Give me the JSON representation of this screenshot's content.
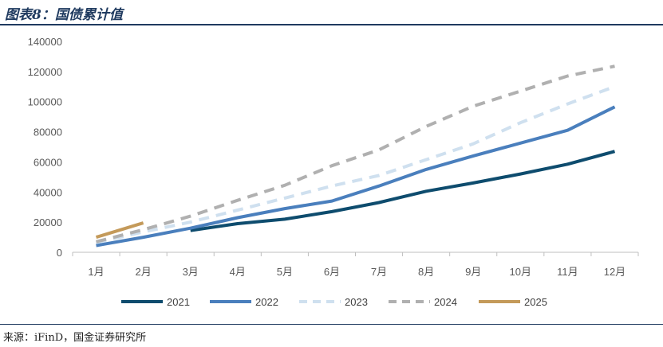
{
  "header": {
    "title": "图表8：国债累计值"
  },
  "footer": {
    "source": "来源：iFinD，国金证券研究所"
  },
  "colors": {
    "2021": "#0e4c6e",
    "2022": "#4a7fbd",
    "2023": "#cfe0ef",
    "2024": "#b0b0b0",
    "2025": "#c49a5a"
  },
  "chart_data": {
    "type": "line",
    "title": "图表8：国债累计值",
    "xlabel": "",
    "ylabel": "",
    "categories": [
      "1月",
      "2月",
      "3月",
      "4月",
      "5月",
      "6月",
      "7月",
      "8月",
      "9月",
      "10月",
      "11月",
      "12月"
    ],
    "y_ticks": [
      "0",
      "20000",
      "40000",
      "60000",
      "80000",
      "100000",
      "120000",
      "140000"
    ],
    "ylim": [
      0,
      140000
    ],
    "grid": false,
    "legend_position": "bottom",
    "series": [
      {
        "name": "2021",
        "style": "solid",
        "values": [
          null,
          null,
          14500,
          19000,
          22000,
          27000,
          33000,
          40500,
          46000,
          52000,
          58500,
          67000
        ]
      },
      {
        "name": "2022",
        "style": "solid",
        "values": [
          4500,
          10000,
          16000,
          23000,
          29000,
          34000,
          44000,
          55000,
          64000,
          72500,
          81000,
          96500
        ]
      },
      {
        "name": "2023",
        "style": "dashed",
        "values": [
          6500,
          13500,
          20000,
          28000,
          36000,
          44000,
          51000,
          61500,
          72000,
          86000,
          98500,
          110000
        ]
      },
      {
        "name": "2024",
        "style": "dashed",
        "values": [
          7000,
          15000,
          24000,
          34500,
          44500,
          57500,
          68000,
          83500,
          97000,
          107000,
          117000,
          123500
        ]
      },
      {
        "name": "2025",
        "style": "solid",
        "values": [
          10000,
          19500,
          null,
          null,
          null,
          null,
          null,
          null,
          null,
          null,
          null,
          null
        ]
      }
    ]
  }
}
